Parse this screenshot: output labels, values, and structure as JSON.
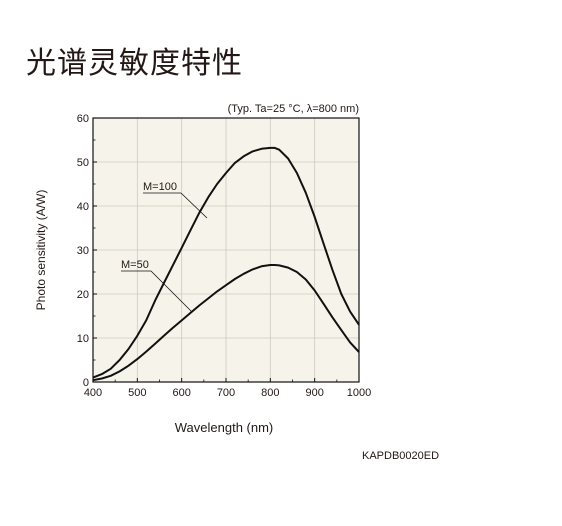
{
  "page": {
    "title": "光谱灵敏度特性",
    "figure_code": "KAPDB0020ED"
  },
  "colors": {
    "plot_background": "#f5f3ea",
    "grid": "#cfcac0",
    "curve": "#111111",
    "text": "#231815"
  },
  "chart_data": {
    "type": "line",
    "annotation_top": "(Typ. Ta=25 °C, λ=800 nm)",
    "xlabel": "Wavelength (nm)",
    "ylabel": "Photo sensitivity (A/W)",
    "xlim": [
      400,
      1000
    ],
    "ylim": [
      0,
      60
    ],
    "xticks": [
      400,
      500,
      600,
      700,
      800,
      900,
      1000
    ],
    "yticks": [
      0,
      10,
      20,
      30,
      40,
      50,
      60
    ],
    "grid": true,
    "series": [
      {
        "name": "M=100",
        "x": [
          400,
          420,
          440,
          460,
          480,
          500,
          520,
          540,
          560,
          580,
          600,
          620,
          640,
          660,
          680,
          700,
          720,
          740,
          760,
          780,
          800,
          810,
          820,
          840,
          860,
          880,
          900,
          920,
          940,
          960,
          980,
          1000
        ],
        "y": [
          1.0,
          1.8,
          3.0,
          5.0,
          7.5,
          10.5,
          14.0,
          18.5,
          22.5,
          26.5,
          30.5,
          34.5,
          38.5,
          42.0,
          45.0,
          47.5,
          49.8,
          51.3,
          52.4,
          53.0,
          53.2,
          53.2,
          52.8,
          50.8,
          47.5,
          43.0,
          37.5,
          31.5,
          25.5,
          20.0,
          16.0,
          13.0
        ]
      },
      {
        "name": "M=50",
        "x": [
          400,
          420,
          440,
          460,
          480,
          500,
          520,
          540,
          560,
          580,
          600,
          620,
          640,
          660,
          680,
          700,
          720,
          740,
          760,
          780,
          800,
          810,
          820,
          840,
          860,
          880,
          900,
          920,
          940,
          960,
          980,
          1000
        ],
        "y": [
          0.4,
          0.8,
          1.4,
          2.4,
          3.7,
          5.2,
          6.9,
          8.7,
          10.5,
          12.3,
          14.0,
          15.7,
          17.4,
          19.0,
          20.6,
          22.0,
          23.4,
          24.6,
          25.6,
          26.3,
          26.6,
          26.6,
          26.5,
          26.0,
          25.0,
          23.3,
          20.8,
          17.8,
          14.7,
          11.8,
          9.0,
          6.8
        ]
      }
    ]
  }
}
